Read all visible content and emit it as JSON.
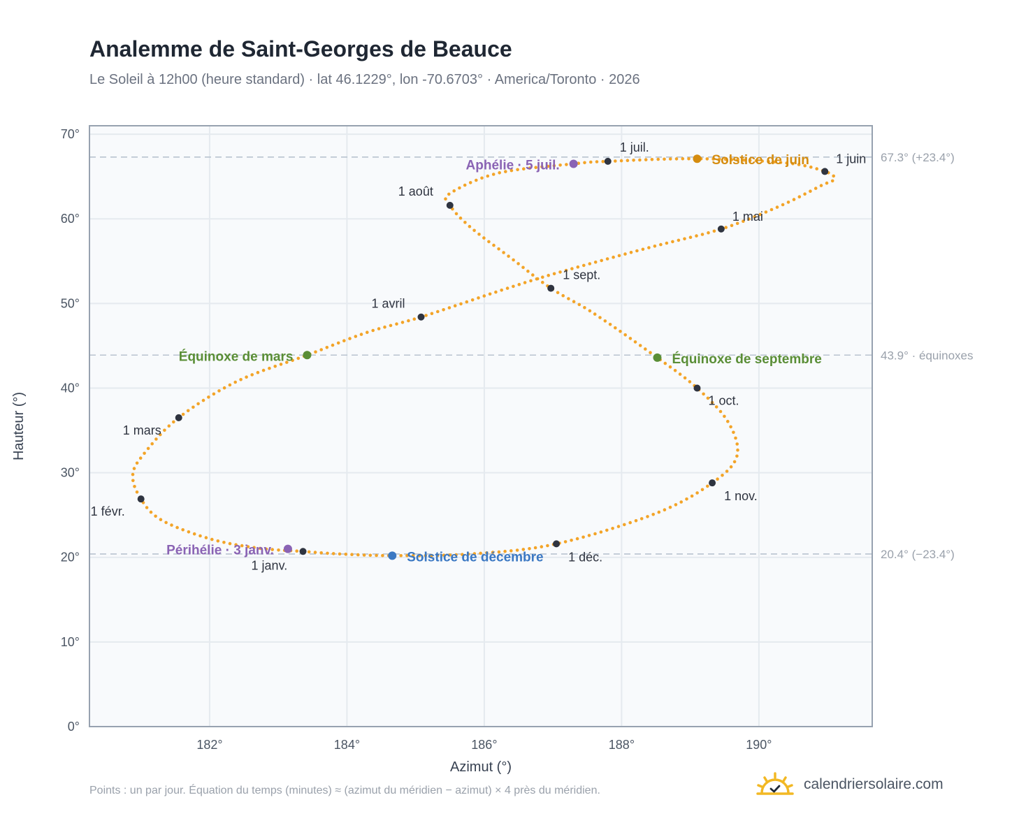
{
  "header": {
    "title": "Analemme de Saint-Georges de Beauce",
    "subtitle": "Le Soleil à 12h00 (heure standard) · lat 46.1229°, lon -70.6703° · America/Toronto · 2026"
  },
  "footer": {
    "note": "Points : un par jour. Équation du temps (minutes) ≈ (azimut du méridien − azimut) × 4 près du méridien.",
    "brand": "calendriersolaire.com"
  },
  "colors": {
    "curve": "#f3a428",
    "month_dot": "#2f3440",
    "june": "#d58c0f",
    "december": "#3b78c3",
    "equinox": "#5a8e36",
    "apsis": "#8a63b4",
    "refline": "#b8c3cf",
    "grid": "#e5eaef",
    "plot_bg": "#f8fafc",
    "frame": "#97a2b0"
  },
  "chart_data": {
    "type": "scatter",
    "xlabel": "Azimut (°)",
    "ylabel": "Hauteur (°)",
    "xlim": [
      180.25,
      191.65
    ],
    "ylim": [
      0,
      71
    ],
    "xticks": [
      182,
      184,
      186,
      188,
      190
    ],
    "yticks": [
      0,
      10,
      20,
      30,
      40,
      50,
      60,
      70
    ],
    "xtick_labels": [
      "182°",
      "184°",
      "186°",
      "188°",
      "190°"
    ],
    "ytick_labels": [
      "0°",
      "10°",
      "20°",
      "30°",
      "40°",
      "50°",
      "60°",
      "70°"
    ],
    "grid": true,
    "reference_lines": [
      {
        "y": 67.3,
        "label": "67.3° (+23.4°)"
      },
      {
        "y": 43.9,
        "label": "43.9° · équinoxes"
      },
      {
        "y": 20.4,
        "label": "20.4° (−23.4°)"
      }
    ],
    "daily_points_note": "un par jour",
    "path_knots": [
      [
        183.36,
        20.7
      ],
      [
        182.7,
        21.1
      ],
      [
        182.0,
        22.2
      ],
      [
        181.3,
        24.4
      ],
      [
        181.0,
        26.9
      ],
      [
        180.88,
        29.7
      ],
      [
        181.05,
        32.3
      ],
      [
        181.55,
        36.5
      ],
      [
        182.4,
        40.8
      ],
      [
        183.42,
        43.9
      ],
      [
        184.3,
        46.6
      ],
      [
        185.08,
        48.4
      ],
      [
        186.3,
        51.7
      ],
      [
        187.1,
        53.7
      ],
      [
        188.4,
        56.6
      ],
      [
        189.45,
        58.8
      ],
      [
        190.3,
        61.5
      ],
      [
        190.9,
        63.9
      ],
      [
        191.1,
        64.7
      ],
      [
        190.96,
        65.6
      ],
      [
        190.4,
        66.6
      ],
      [
        189.1,
        67.1
      ],
      [
        187.8,
        66.8
      ],
      [
        187.3,
        66.5
      ],
      [
        186.2,
        65.4
      ],
      [
        185.5,
        63.0
      ],
      [
        185.5,
        61.6
      ],
      [
        185.8,
        59.0
      ],
      [
        186.4,
        55.3
      ],
      [
        186.97,
        51.8
      ],
      [
        187.6,
        48.8
      ],
      [
        188.52,
        43.6
      ],
      [
        189.1,
        40.0
      ],
      [
        189.55,
        36.0
      ],
      [
        189.68,
        32.0
      ],
      [
        189.32,
        28.8
      ],
      [
        188.5,
        25.2
      ],
      [
        187.05,
        21.6
      ],
      [
        185.8,
        20.4
      ],
      [
        184.66,
        20.2
      ],
      [
        183.9,
        20.4
      ],
      [
        183.36,
        20.7
      ]
    ],
    "month_markers": [
      {
        "label": "1 janv.",
        "x": 183.36,
        "y": 20.7
      },
      {
        "label": "1 févr.",
        "x": 181.0,
        "y": 26.9
      },
      {
        "label": "1 mars",
        "x": 181.55,
        "y": 36.5
      },
      {
        "label": "1 avril",
        "x": 185.08,
        "y": 48.4
      },
      {
        "label": "1 mai",
        "x": 189.45,
        "y": 58.8
      },
      {
        "label": "1 juin",
        "x": 190.96,
        "y": 65.6
      },
      {
        "label": "1 juil.",
        "x": 187.8,
        "y": 66.8
      },
      {
        "label": "1 août",
        "x": 185.5,
        "y": 61.6
      },
      {
        "label": "1 sept.",
        "x": 186.97,
        "y": 51.8
      },
      {
        "label": "1 oct.",
        "x": 189.1,
        "y": 40.0
      },
      {
        "label": "1 nov.",
        "x": 189.32,
        "y": 28.8
      },
      {
        "label": "1 déc.",
        "x": 187.05,
        "y": 21.6
      }
    ],
    "events": [
      {
        "label": "Solstice de juin",
        "x": 189.1,
        "y": 67.1,
        "kind": "june"
      },
      {
        "label": "Solstice de décembre",
        "x": 184.66,
        "y": 20.2,
        "kind": "december"
      },
      {
        "label": "Équinoxe de mars",
        "x": 183.42,
        "y": 43.9,
        "kind": "equinox"
      },
      {
        "label": "Équinoxe de septembre",
        "x": 188.52,
        "y": 43.6,
        "kind": "equinox"
      },
      {
        "label": "Aphélie · 5 juil.",
        "x": 187.3,
        "y": 66.5,
        "kind": "apsis"
      },
      {
        "label": "Périhélie · 3 janv.",
        "x": 183.14,
        "y": 21.0,
        "kind": "apsis"
      }
    ]
  }
}
